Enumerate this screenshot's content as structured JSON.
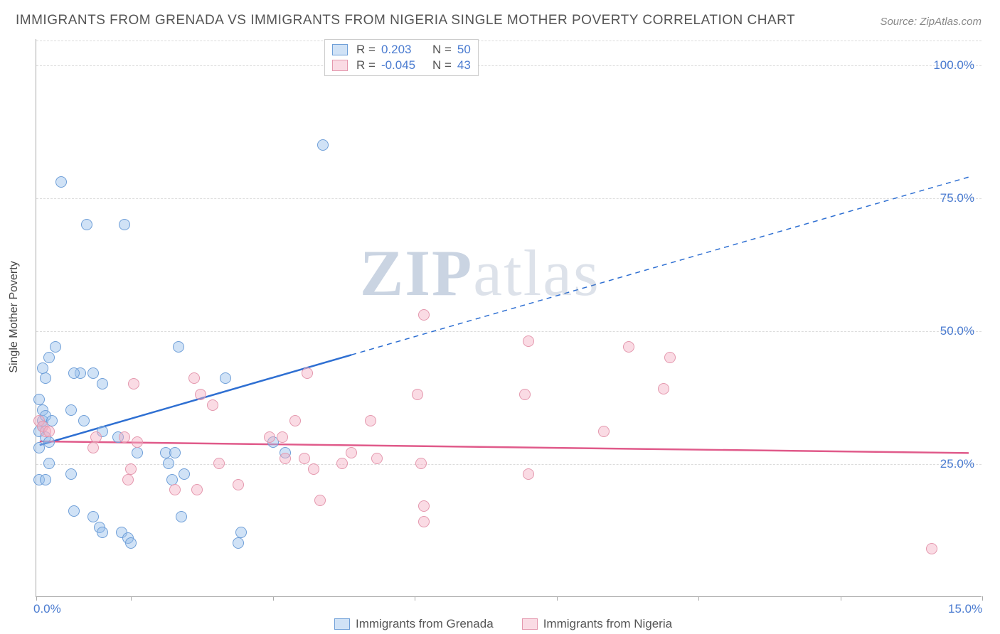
{
  "title": "IMMIGRANTS FROM GRENADA VS IMMIGRANTS FROM NIGERIA SINGLE MOTHER POVERTY CORRELATION CHART",
  "source": "Source: ZipAtlas.com",
  "ylabel": "Single Mother Poverty",
  "watermark_a": "ZIP",
  "watermark_b": "atlas",
  "chart": {
    "type": "scatter",
    "xlim": [
      0,
      15
    ],
    "ylim": [
      0,
      105
    ],
    "xticks": [
      0,
      1.5,
      3.75,
      6.0,
      8.25,
      10.5,
      12.75,
      15
    ],
    "xtick_labels": {
      "0": "0.0%",
      "15": "15.0%"
    },
    "yticks": [
      25,
      50,
      75,
      100
    ],
    "ytick_labels": [
      "25.0%",
      "50.0%",
      "75.0%",
      "100.0%"
    ],
    "grid_color": "#dcdcdc",
    "background": "#ffffff",
    "axis_color": "#aaaaaa",
    "tick_label_color": "#4a7bd0",
    "marker_radius": 8,
    "marker_stroke_width": 1.5
  },
  "series": [
    {
      "name": "Immigrants from Grenada",
      "fill": "rgba(150, 190, 235, 0.45)",
      "stroke": "#6f9fd8",
      "line_color": "#2e6fd2",
      "trend_solid": {
        "x1": 0.05,
        "y1": 28.5,
        "x2": 5.0,
        "y2": 45.5
      },
      "trend_dash": {
        "x1": 5.0,
        "y1": 45.5,
        "x2": 14.8,
        "y2": 79.0
      },
      "R": "0.203",
      "N": "50",
      "points": [
        [
          0.05,
          28
        ],
        [
          0.05,
          31
        ],
        [
          0.1,
          33
        ],
        [
          0.1,
          35
        ],
        [
          0.1,
          32
        ],
        [
          0.15,
          30
        ],
        [
          0.2,
          29
        ],
        [
          0.15,
          41
        ],
        [
          0.2,
          45
        ],
        [
          0.1,
          43
        ],
        [
          0.05,
          37
        ],
        [
          0.15,
          34
        ],
        [
          0.25,
          33
        ],
        [
          0.2,
          25
        ],
        [
          0.05,
          22
        ],
        [
          0.15,
          22
        ],
        [
          0.4,
          78
        ],
        [
          1.4,
          70
        ],
        [
          0.8,
          70
        ],
        [
          0.3,
          47
        ],
        [
          0.7,
          42
        ],
        [
          0.6,
          42
        ],
        [
          0.9,
          42
        ],
        [
          1.05,
          40
        ],
        [
          0.55,
          35
        ],
        [
          0.75,
          33
        ],
        [
          1.05,
          31
        ],
        [
          1.3,
          30
        ],
        [
          2.25,
          47
        ],
        [
          3.0,
          41
        ],
        [
          4.55,
          85
        ],
        [
          2.05,
          27
        ],
        [
          2.2,
          27
        ],
        [
          2.1,
          25
        ],
        [
          2.15,
          22
        ],
        [
          2.3,
          15
        ],
        [
          2.35,
          23
        ],
        [
          1.6,
          27
        ],
        [
          3.75,
          29
        ],
        [
          3.95,
          27
        ],
        [
          1.35,
          12
        ],
        [
          1.45,
          11
        ],
        [
          1.5,
          10
        ],
        [
          0.9,
          15
        ],
        [
          1.0,
          13
        ],
        [
          1.05,
          12
        ],
        [
          0.55,
          23
        ],
        [
          0.6,
          16
        ],
        [
          3.25,
          12
        ],
        [
          3.2,
          10
        ]
      ]
    },
    {
      "name": "Immigrants from Nigeria",
      "fill": "rgba(245, 175, 195, 0.45)",
      "stroke": "#e498ae",
      "line_color": "#e05a8a",
      "trend_solid": {
        "x1": 0.05,
        "y1": 29.2,
        "x2": 14.8,
        "y2": 27.0
      },
      "trend_dash": null,
      "R": "-0.045",
      "N": "43",
      "points": [
        [
          0.05,
          33
        ],
        [
          0.1,
          32
        ],
        [
          0.15,
          31
        ],
        [
          0.2,
          31
        ],
        [
          1.4,
          30
        ],
        [
          1.6,
          29
        ],
        [
          1.55,
          40
        ],
        [
          2.5,
          41
        ],
        [
          2.6,
          38
        ],
        [
          2.8,
          36
        ],
        [
          4.3,
          42
        ],
        [
          4.1,
          33
        ],
        [
          3.9,
          30
        ],
        [
          3.7,
          30
        ],
        [
          2.2,
          20
        ],
        [
          2.55,
          20
        ],
        [
          3.2,
          21
        ],
        [
          3.95,
          26
        ],
        [
          4.25,
          26
        ],
        [
          4.4,
          24
        ],
        [
          4.5,
          18
        ],
        [
          4.85,
          25
        ],
        [
          5.3,
          33
        ],
        [
          5.4,
          26
        ],
        [
          6.15,
          53
        ],
        [
          6.05,
          38
        ],
        [
          6.1,
          25
        ],
        [
          6.15,
          17
        ],
        [
          6.15,
          14
        ],
        [
          7.8,
          48
        ],
        [
          7.75,
          38
        ],
        [
          7.8,
          23
        ],
        [
          9.0,
          31
        ],
        [
          9.4,
          47
        ],
        [
          9.95,
          39
        ],
        [
          10.05,
          45
        ],
        [
          14.2,
          9
        ],
        [
          1.45,
          22
        ],
        [
          1.5,
          24
        ],
        [
          0.9,
          28
        ],
        [
          0.95,
          30
        ],
        [
          2.9,
          25
        ],
        [
          5.0,
          27
        ]
      ]
    }
  ],
  "stats_legend": {
    "R_label": "R =",
    "N_label": "N ="
  }
}
